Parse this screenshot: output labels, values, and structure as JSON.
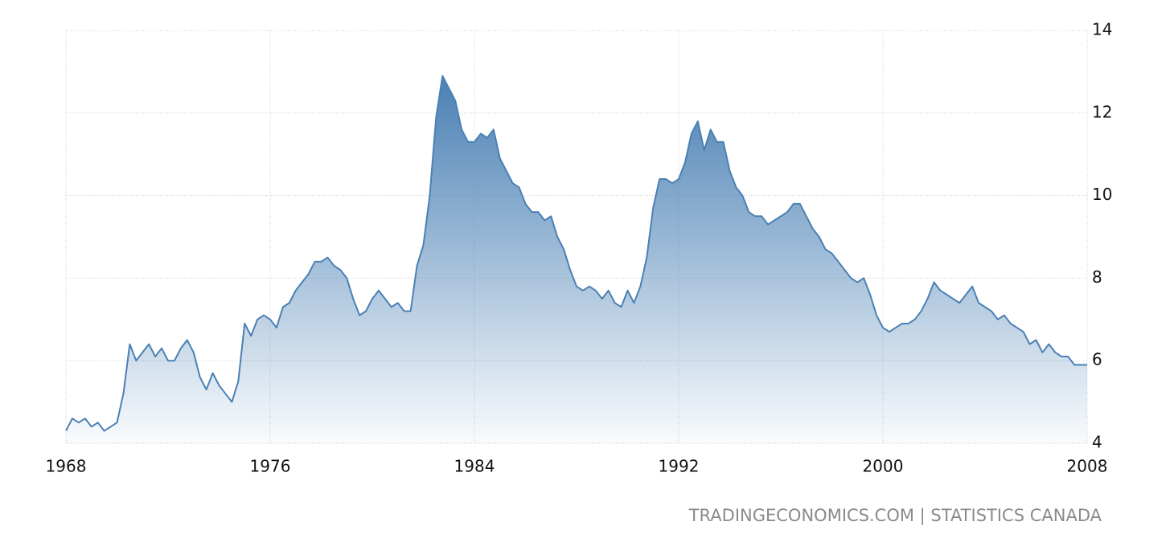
{
  "chart_data": {
    "type": "area",
    "color": "#4a80b4",
    "grid": true,
    "source": "TRADINGECONOMICS.COM | STATISTICS CANADA",
    "xlim": [
      1968,
      2008
    ],
    "xticks": [
      1968,
      1976,
      1984,
      1992,
      2000,
      2008
    ],
    "ylim": [
      4,
      14
    ],
    "yticks": [
      4,
      6,
      8,
      10,
      12,
      14
    ],
    "x": [
      1968,
      1968.25,
      1968.5,
      1968.75,
      1969,
      1969.25,
      1969.5,
      1969.75,
      1970,
      1970.25,
      1970.5,
      1970.75,
      1971,
      1971.25,
      1971.5,
      1971.75,
      1972,
      1972.25,
      1972.5,
      1972.75,
      1973,
      1973.25,
      1973.5,
      1973.75,
      1974,
      1974.25,
      1974.5,
      1974.75,
      1975,
      1975.25,
      1975.5,
      1975.75,
      1976,
      1976.25,
      1976.5,
      1976.75,
      1977,
      1977.25,
      1977.5,
      1977.75,
      1978,
      1978.25,
      1978.5,
      1978.75,
      1979,
      1979.25,
      1979.5,
      1979.75,
      1980,
      1980.25,
      1980.5,
      1980.75,
      1981,
      1981.25,
      1981.5,
      1981.75,
      1982,
      1982.25,
      1982.5,
      1982.75,
      1983,
      1983.25,
      1983.5,
      1983.75,
      1984,
      1984.25,
      1984.5,
      1984.75,
      1985,
      1985.25,
      1985.5,
      1985.75,
      1986,
      1986.25,
      1986.5,
      1986.75,
      1987,
      1987.25,
      1987.5,
      1987.75,
      1988,
      1988.25,
      1988.5,
      1988.75,
      1989,
      1989.25,
      1989.5,
      1989.75,
      1990,
      1990.25,
      1990.5,
      1990.75,
      1991,
      1991.25,
      1991.5,
      1991.75,
      1992,
      1992.25,
      1992.5,
      1992.75,
      1993,
      1993.25,
      1993.5,
      1993.75,
      1994,
      1994.25,
      1994.5,
      1994.75,
      1995,
      1995.25,
      1995.5,
      1995.75,
      1996,
      1996.25,
      1996.5,
      1996.75,
      1997,
      1997.25,
      1997.5,
      1997.75,
      1998,
      1998.25,
      1998.5,
      1998.75,
      1999,
      1999.25,
      1999.5,
      1999.75,
      2000,
      2000.25,
      2000.5,
      2000.75,
      2001,
      2001.25,
      2001.5,
      2001.75,
      2002,
      2002.25,
      2002.5,
      2002.75,
      2003,
      2003.25,
      2003.5,
      2003.75,
      2004,
      2004.25,
      2004.5,
      2004.75,
      2005,
      2005.25,
      2005.5,
      2005.75,
      2006,
      2006.25,
      2006.5,
      2006.75,
      2007,
      2007.25,
      2007.5,
      2007.75,
      2008
    ],
    "values": [
      4.3,
      4.6,
      4.5,
      4.6,
      4.4,
      4.5,
      4.3,
      4.4,
      4.5,
      5.2,
      6.4,
      6.0,
      6.2,
      6.4,
      6.1,
      6.3,
      6.0,
      6.0,
      6.3,
      6.5,
      6.2,
      5.6,
      5.3,
      5.7,
      5.4,
      5.2,
      5.0,
      5.5,
      6.9,
      6.6,
      7.0,
      7.1,
      7.0,
      6.8,
      7.3,
      7.4,
      7.7,
      7.9,
      8.1,
      8.4,
      8.4,
      8.5,
      8.3,
      8.2,
      8.0,
      7.5,
      7.1,
      7.2,
      7.5,
      7.7,
      7.5,
      7.3,
      7.4,
      7.2,
      7.2,
      8.3,
      8.8,
      10.0,
      11.9,
      12.9,
      12.6,
      12.3,
      11.6,
      11.3,
      11.3,
      11.5,
      11.4,
      11.6,
      10.9,
      10.6,
      10.3,
      10.2,
      9.8,
      9.6,
      9.6,
      9.4,
      9.5,
      9.0,
      8.7,
      8.2,
      7.8,
      7.7,
      7.8,
      7.7,
      7.5,
      7.7,
      7.4,
      7.3,
      7.7,
      7.4,
      7.8,
      8.5,
      9.7,
      10.4,
      10.4,
      10.3,
      10.4,
      10.8,
      11.5,
      11.8,
      11.1,
      11.6,
      11.3,
      11.3,
      10.6,
      10.2,
      10.0,
      9.6,
      9.5,
      9.5,
      9.3,
      9.4,
      9.5,
      9.6,
      9.8,
      9.8,
      9.5,
      9.2,
      9.0,
      8.7,
      8.6,
      8.4,
      8.2,
      8.0,
      7.9,
      8.0,
      7.6,
      7.1,
      6.8,
      6.7,
      6.8,
      6.9,
      6.9,
      7.0,
      7.2,
      7.5,
      7.9,
      7.7,
      7.6,
      7.5,
      7.4,
      7.6,
      7.8,
      7.4,
      7.3,
      7.2,
      7.0,
      7.1,
      6.9,
      6.8,
      6.7,
      6.4,
      6.5,
      6.2,
      6.4,
      6.2,
      6.1,
      6.1,
      5.9,
      5.9,
      5.9
    ]
  }
}
